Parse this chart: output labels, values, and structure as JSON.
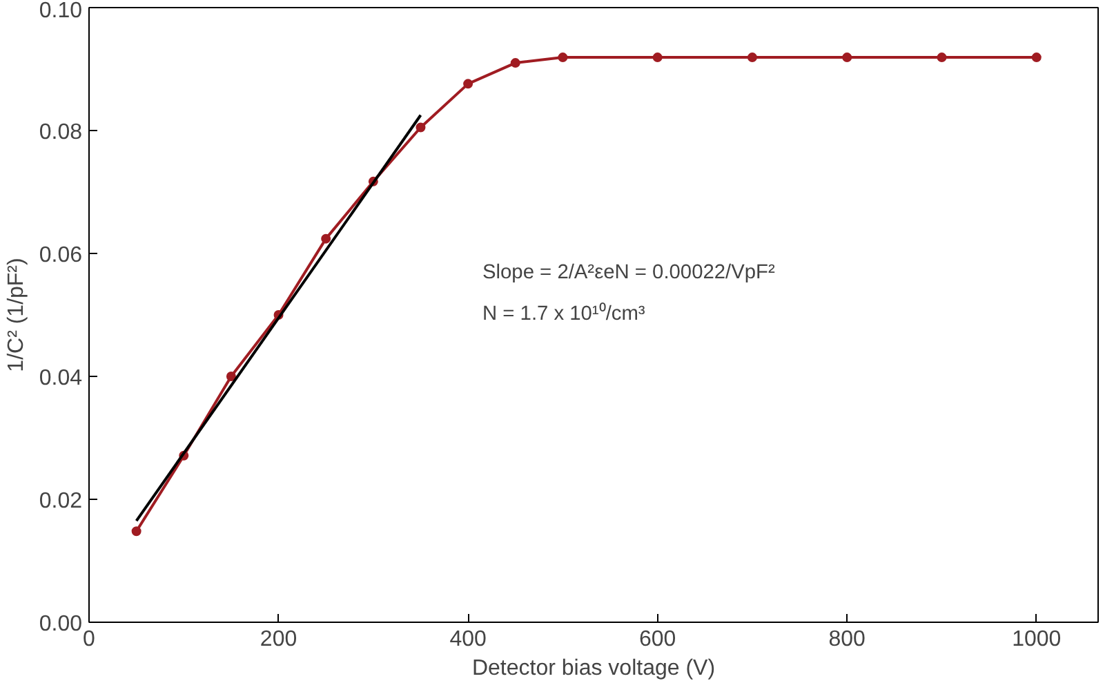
{
  "chart_data": {
    "type": "line",
    "xlabel": "Detector bias voltage (V)",
    "ylabel": "1/C² (1/pF²)",
    "xlim": [
      0,
      1065
    ],
    "xticks": [
      0,
      200,
      400,
      600,
      800,
      1000
    ],
    "ylim": [
      0,
      0.1
    ],
    "yticks": [
      {
        "value": 0,
        "label": "0.00"
      },
      {
        "value": 0.02,
        "label": "0.02"
      },
      {
        "value": 0.04,
        "label": "0.04"
      },
      {
        "value": 0.06,
        "label": "0.06"
      },
      {
        "value": 0.08,
        "label": "0.08"
      },
      {
        "value": 0.1,
        "label": "0.10"
      }
    ],
    "grid": false,
    "series": [
      {
        "color": "#a01c22",
        "marker": "circle",
        "x": [
          50,
          100,
          150,
          200,
          250,
          300,
          350,
          400,
          450,
          500,
          600,
          700,
          800,
          900,
          1000
        ],
        "values": [
          0.0148,
          0.0271,
          0.04,
          0.05,
          0.0624,
          0.0717,
          0.0805,
          0.0876,
          0.091,
          0.0919,
          0.0919,
          0.0919,
          0.0919,
          0.0919,
          0.0919
        ]
      },
      {
        "color": "#000000",
        "marker": "none",
        "x": [
          50,
          350
        ],
        "values": [
          0.0165,
          0.0825
        ]
      }
    ],
    "annotations": [
      "Slope = 2/A²εeN = 0.00022/VpF²",
      "N = 1.7 x 10¹⁰/cm³"
    ]
  }
}
